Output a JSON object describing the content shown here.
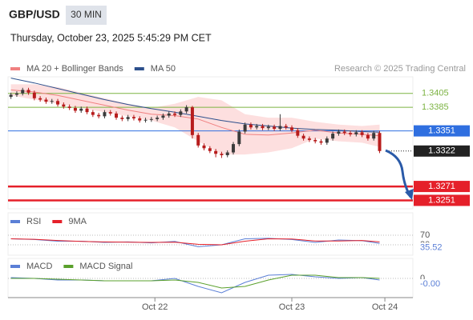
{
  "header": {
    "symbol": "GBP/USD",
    "interval": "30 MIN",
    "timestamp": "Thursday, October 23, 2025 5:45:29 PM CET",
    "credit": "Research © 2025 Trading Central"
  },
  "chart_data": [
    {
      "type": "candlestick",
      "ylim": [
        1.324,
        1.343
      ],
      "xlim": [
        0,
        68.5
      ],
      "up_color": "#3b3b3b",
      "down_color": "#b71c1c",
      "ohlc": {
        "open": [
          1.34,
          1.3403,
          1.3405,
          1.341,
          1.3406,
          1.3398,
          1.3396,
          1.3393,
          1.3394,
          1.3389,
          1.3386,
          1.3384,
          1.338,
          1.3383,
          1.3378,
          1.3374,
          1.3372,
          1.3378,
          1.3376,
          1.337,
          1.3368,
          1.3371,
          1.3369,
          1.3366,
          1.3367,
          1.3368,
          1.337,
          1.3373,
          1.3376,
          1.3374,
          1.3379,
          1.3385,
          1.3345,
          1.333,
          1.3326,
          1.3322,
          1.3318,
          1.3316,
          1.332,
          1.3332,
          1.335,
          1.336,
          1.3356,
          1.3358,
          1.3355,
          1.3357,
          1.3354,
          1.3358,
          1.3356,
          1.3352,
          1.3344,
          1.334,
          1.3338,
          1.3336,
          1.3334,
          1.334,
          1.3347,
          1.335,
          1.3348,
          1.3346,
          1.3349,
          1.3345,
          1.334,
          1.3348
        ],
        "high": [
          1.3406,
          1.3408,
          1.3413,
          1.3413,
          1.3409,
          1.3401,
          1.3399,
          1.3397,
          1.3397,
          1.3392,
          1.3389,
          1.3387,
          1.3386,
          1.3386,
          1.3381,
          1.3377,
          1.3381,
          1.3381,
          1.3379,
          1.3373,
          1.3374,
          1.3374,
          1.3372,
          1.337,
          1.3371,
          1.3373,
          1.3376,
          1.3379,
          1.3379,
          1.3382,
          1.3388,
          1.3387,
          1.3348,
          1.3333,
          1.3329,
          1.3325,
          1.3321,
          1.3323,
          1.3335,
          1.3353,
          1.3363,
          1.3363,
          1.3361,
          1.3361,
          1.336,
          1.336,
          1.3375,
          1.3361,
          1.3359,
          1.3355,
          1.3347,
          1.3343,
          1.3341,
          1.3339,
          1.3343,
          1.335,
          1.3353,
          1.3353,
          1.3351,
          1.3352,
          1.3352,
          1.3348,
          1.3351,
          1.3351
        ],
        "low": [
          1.3397,
          1.34,
          1.3402,
          1.3403,
          1.3395,
          1.3393,
          1.339,
          1.339,
          1.3386,
          1.3383,
          1.3381,
          1.3377,
          1.3377,
          1.3375,
          1.3371,
          1.3369,
          1.3369,
          1.3373,
          1.3367,
          1.3365,
          1.3365,
          1.3366,
          1.3363,
          1.3363,
          1.3364,
          1.3365,
          1.3367,
          1.337,
          1.3371,
          1.3371,
          1.3376,
          1.334,
          1.3327,
          1.3323,
          1.3319,
          1.3313,
          1.3312,
          1.3313,
          1.3317,
          1.3329,
          1.3347,
          1.3353,
          1.3353,
          1.3352,
          1.3352,
          1.3351,
          1.3351,
          1.3353,
          1.3349,
          1.3341,
          1.3337,
          1.3335,
          1.3333,
          1.3331,
          1.3331,
          1.3337,
          1.3344,
          1.3345,
          1.3343,
          1.3343,
          1.3342,
          1.3337,
          1.3337,
          1.3319
        ],
        "close": [
          1.3403,
          1.3405,
          1.341,
          1.3406,
          1.3398,
          1.3396,
          1.3393,
          1.3394,
          1.3389,
          1.3386,
          1.3384,
          1.338,
          1.3383,
          1.3378,
          1.3374,
          1.3372,
          1.3378,
          1.3376,
          1.337,
          1.3368,
          1.3371,
          1.3369,
          1.3366,
          1.3367,
          1.3368,
          1.337,
          1.3373,
          1.3376,
          1.3374,
          1.3379,
          1.3385,
          1.3345,
          1.333,
          1.3326,
          1.3322,
          1.3318,
          1.3316,
          1.332,
          1.3332,
          1.335,
          1.336,
          1.3356,
          1.3358,
          1.3355,
          1.3357,
          1.3354,
          1.3358,
          1.3356,
          1.3352,
          1.3344,
          1.334,
          1.3338,
          1.3336,
          1.3334,
          1.334,
          1.3347,
          1.335,
          1.3348,
          1.3346,
          1.3349,
          1.3345,
          1.334,
          1.3348,
          1.3322
        ]
      },
      "series": [
        {
          "name": "MA 20 + Bollinger Bands",
          "color": "#f08080",
          "band_color": "#fdd9d9",
          "x": [
            0.5,
            4.5,
            8.5,
            12.5,
            16.5,
            20.5,
            24.5,
            28.5,
            32.5,
            36.5,
            40.5,
            44.5,
            48.5,
            52.5,
            56.5,
            60.5,
            63.5
          ],
          "values": [
            1.341,
            1.3407,
            1.3402,
            1.3395,
            1.3388,
            1.3381,
            1.3375,
            1.3373,
            1.3368,
            1.3356,
            1.3346,
            1.3345,
            1.3348,
            1.3352,
            1.3348,
            1.3346,
            1.3344
          ],
          "upper": [
            1.3418,
            1.3418,
            1.3414,
            1.3406,
            1.3398,
            1.339,
            1.3384,
            1.339,
            1.34,
            1.3395,
            1.3375,
            1.337,
            1.337,
            1.3364,
            1.336,
            1.3358,
            1.336
          ],
          "lower": [
            1.3402,
            1.3396,
            1.339,
            1.3384,
            1.3378,
            1.3372,
            1.3366,
            1.3356,
            1.3336,
            1.3317,
            1.3317,
            1.332,
            1.3326,
            1.334,
            1.3336,
            1.3334,
            1.3328
          ]
        },
        {
          "name": "MA 50",
          "color": "#2c4f8c",
          "x": [
            0.5,
            4.5,
            8.5,
            12.5,
            16.5,
            20.5,
            24.5,
            28.5,
            32.5,
            36.5,
            40.5,
            44.5,
            48.5,
            52.5,
            56.5,
            60.5,
            63.5
          ],
          "values": [
            1.3427,
            1.342,
            1.3412,
            1.3404,
            1.3396,
            1.3389,
            1.3383,
            1.3378,
            1.3372,
            1.3366,
            1.3361,
            1.3358,
            1.3355,
            1.3353,
            1.3352,
            1.335,
            1.3349
          ]
        }
      ],
      "levels": [
        {
          "value": 1.3405,
          "color": "#7cb342",
          "boxed": false
        },
        {
          "value": 1.3385,
          "color": "#7cb342",
          "boxed": false
        },
        {
          "value": 1.3351,
          "color": "#2f6fe0",
          "boxed": true
        },
        {
          "value": 1.3322,
          "color": "#222222",
          "boxed": true,
          "dotted": true
        },
        {
          "value": 1.3271,
          "color": "#e5202a",
          "boxed": true
        },
        {
          "value": 1.3251,
          "color": "#e5202a",
          "boxed": true
        }
      ]
    },
    {
      "type": "line",
      "ylim": [
        0,
        100
      ],
      "yticks": [
        30,
        70
      ],
      "grid": true,
      "xlim": [
        0,
        68.5
      ],
      "series": [
        {
          "name": "RSI",
          "color": "#5b7fd6",
          "tag": true,
          "x": [
            0.5,
            4.5,
            8.5,
            12.5,
            16.5,
            20.5,
            24.5,
            28.5,
            32.5,
            36.5,
            40.5,
            44.5,
            48.5,
            52.5,
            56.5,
            60.5,
            63.5
          ],
          "values": [
            55,
            52,
            45,
            45,
            40,
            42,
            38,
            44,
            22,
            30,
            55,
            57,
            52,
            40,
            50,
            47,
            35.52
          ]
        },
        {
          "name": "9MA",
          "color": "#e5202a",
          "x": [
            0.5,
            4.5,
            8.5,
            12.5,
            16.5,
            20.5,
            24.5,
            28.5,
            32.5,
            36.5,
            40.5,
            44.5,
            48.5,
            52.5,
            56.5,
            60.5,
            63.5
          ],
          "values": [
            55,
            53,
            48,
            44,
            42,
            41,
            40,
            41,
            32,
            30,
            45,
            55,
            54,
            46,
            46,
            48,
            42
          ]
        }
      ]
    },
    {
      "type": "line",
      "ylim": [
        -0.0022,
        0.0008
      ],
      "yticks": [
        0
      ],
      "grid": true,
      "xlim": [
        0,
        68.5
      ],
      "xticks": [
        {
          "value": 25.1,
          "label": "Oct 22"
        },
        {
          "value": 48.5,
          "label": "Oct 23"
        },
        {
          "value": 64.4,
          "label": "Oct 24"
        }
      ],
      "series": [
        {
          "name": "MACD",
          "color": "#5b7fd6",
          "tag": true,
          "x": [
            0.5,
            4.5,
            8.5,
            12.5,
            16.5,
            20.5,
            24.5,
            28.5,
            32.5,
            36.5,
            40.5,
            44.5,
            48.5,
            52.5,
            56.5,
            60.5,
            63.5
          ],
          "values": [
            0.0001,
            0.0,
            -0.0002,
            -0.0002,
            -0.0003,
            -0.0003,
            -0.0003,
            0.0,
            -0.001,
            -0.0018,
            -0.0005,
            0.0004,
            0.0005,
            0.0002,
            0.0,
            0.0001,
            -0.0002
          ],
          "value_labels": [
            null,
            null,
            null,
            null,
            null,
            null,
            null,
            null,
            null,
            null,
            null,
            null,
            null,
            null,
            null,
            null,
            "-0.00"
          ]
        },
        {
          "name": "MACD Signal",
          "color": "#5aa02c",
          "x": [
            0.5,
            4.5,
            8.5,
            12.5,
            16.5,
            20.5,
            24.5,
            28.5,
            32.5,
            36.5,
            40.5,
            44.5,
            48.5,
            52.5,
            56.5,
            60.5,
            63.5
          ],
          "values": [
            0.0,
            0.0,
            -0.0001,
            -0.0002,
            -0.0003,
            -0.0003,
            -0.0003,
            -0.0002,
            -0.0005,
            -0.0012,
            -0.001,
            -0.0002,
            0.0004,
            0.0004,
            0.0001,
            0.0001,
            0.0
          ]
        }
      ]
    }
  ]
}
